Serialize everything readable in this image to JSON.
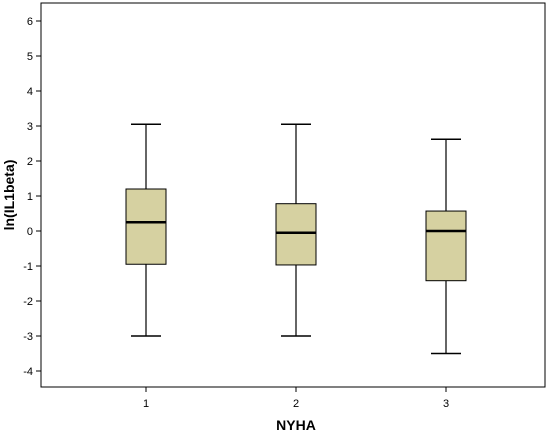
{
  "chart_data": {
    "type": "box",
    "xlabel": "NYHA",
    "ylabel": "ln(IL1beta)",
    "ylim": [
      -4.3,
      6.4
    ],
    "yticks": [
      -4,
      -3,
      -2,
      -1,
      0,
      1,
      2,
      3,
      4,
      5,
      6
    ],
    "categories": [
      "1",
      "2",
      "3"
    ],
    "boxes": [
      {
        "category": "1",
        "min": -3.0,
        "q1": -0.95,
        "median": 0.25,
        "q3": 1.2,
        "max": 3.05
      },
      {
        "category": "2",
        "min": -3.0,
        "q1": -0.97,
        "median": -0.05,
        "q3": 0.78,
        "max": 3.05
      },
      {
        "category": "3",
        "min": -3.5,
        "q1": -1.42,
        "median": 0.0,
        "q3": 0.57,
        "max": 2.62
      }
    ],
    "box_fill": "#d6d1a1",
    "box_stroke": "#000000",
    "grid": false,
    "legend": "none"
  }
}
